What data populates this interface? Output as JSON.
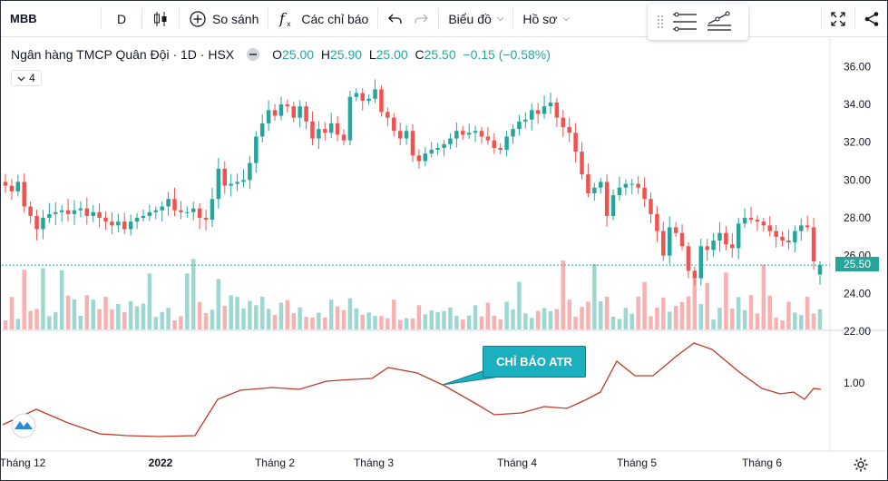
{
  "toolbar": {
    "symbol": "MBB",
    "interval": "D",
    "compare_label": "So sánh",
    "indicators_label": "Các chỉ báo",
    "chart_type_label": "Biểu đồ",
    "profile_label": "Hồ sơ"
  },
  "legend": {
    "name": "Ngân hàng TMCP Quân Đội · 1D · HSX",
    "o_key": "O",
    "o_val": "25.00",
    "h_key": "H",
    "h_val": "25.90",
    "l_key": "L",
    "l_val": "25.00",
    "c_key": "C",
    "c_val": "25.50",
    "change": "−0.15 (−0.58%)"
  },
  "collapse_count": "4",
  "atr_callout": "CHỈ BÁO ATR",
  "last_price": "25.50",
  "colors": {
    "up": "#26a69a",
    "down": "#ef5350",
    "atr": "#c0392b",
    "callout": "#1ab0c0"
  },
  "chart_data": {
    "type": "candlestick",
    "y_axis": {
      "ticks": [
        "36.00",
        "34.00",
        "32.00",
        "30.00",
        "28.00",
        "26.00",
        "24.00",
        "22.00"
      ],
      "range": [
        22,
        36.5
      ]
    },
    "x_axis": {
      "ticks": [
        "Tháng 12",
        "2022",
        "Tháng 2",
        "Tháng 3",
        "Tháng 4",
        "Tháng 5",
        "Tháng 6"
      ]
    },
    "close": [
      29.7,
      29.4,
      29.9,
      28.6,
      28.1,
      27.4,
      28.0,
      28.2,
      28.3,
      28.4,
      28.2,
      28.4,
      28.5,
      28.1,
      28.3,
      28.0,
      27.8,
      27.6,
      27.8,
      27.4,
      27.8,
      28.0,
      28.1,
      28.3,
      28.4,
      28.6,
      29.0,
      28.4,
      28.3,
      28.3,
      28.5,
      28.0,
      27.9,
      29.0,
      30.6,
      29.7,
      29.8,
      29.9,
      30.0,
      30.9,
      32.3,
      33.0,
      33.7,
      33.4,
      34.0,
      33.9,
      33.3,
      33.9,
      33.1,
      32.2,
      32.7,
      32.5,
      33.0,
      32.4,
      32.1,
      34.4,
      34.6,
      34.2,
      34.3,
      34.8,
      33.6,
      33.3,
      32.6,
      32.2,
      32.6,
      31.3,
      31.0,
      31.4,
      31.6,
      31.7,
      31.9,
      32.2,
      32.6,
      32.4,
      32.5,
      32.6,
      32.3,
      32.1,
      31.7,
      31.6,
      32.3,
      32.7,
      33.1,
      33.2,
      33.7,
      33.5,
      33.9,
      34.1,
      33.3,
      32.8,
      32.5,
      31.5,
      30.3,
      29.3,
      29.6,
      29.9,
      28.1,
      29.2,
      29.6,
      29.8,
      29.8,
      29.6,
      29.0,
      28.2,
      27.3,
      26.0,
      27.5,
      27.2,
      26.5,
      25.2,
      24.8,
      26.5,
      26.3,
      26.8,
      27.2,
      26.6,
      26.4,
      27.7,
      28.0,
      27.9,
      27.8,
      27.6,
      27.3,
      27.0,
      26.8,
      26.7,
      27.3,
      27.6,
      27.5,
      25.7,
      25.5
    ],
    "open": [
      29.9,
      29.7,
      29.4,
      29.9,
      28.6,
      28.1,
      27.4,
      28.0,
      28.2,
      28.3,
      28.4,
      28.2,
      28.4,
      28.5,
      28.1,
      28.3,
      28.0,
      27.8,
      27.6,
      27.8,
      27.4,
      27.8,
      28.0,
      28.1,
      28.3,
      28.4,
      28.6,
      29.0,
      28.4,
      28.3,
      28.3,
      28.5,
      28.0,
      27.9,
      29.0,
      30.6,
      29.7,
      29.8,
      29.9,
      30.0,
      30.9,
      32.3,
      33.0,
      33.7,
      33.4,
      34.0,
      33.9,
      33.3,
      33.9,
      33.1,
      32.2,
      32.7,
      32.5,
      33.0,
      32.4,
      32.1,
      34.4,
      34.6,
      34.2,
      34.3,
      34.8,
      33.6,
      33.3,
      32.6,
      32.2,
      32.6,
      31.3,
      31.0,
      31.4,
      31.6,
      31.7,
      31.9,
      32.2,
      32.6,
      32.4,
      32.5,
      32.6,
      32.3,
      32.1,
      31.7,
      31.6,
      32.3,
      32.7,
      33.1,
      33.2,
      33.7,
      33.5,
      33.9,
      34.1,
      33.3,
      32.8,
      32.5,
      31.5,
      30.3,
      29.3,
      29.6,
      29.9,
      28.1,
      29.2,
      29.6,
      29.8,
      29.8,
      29.6,
      29.0,
      28.2,
      27.3,
      26.0,
      27.5,
      27.2,
      26.5,
      25.2,
      24.8,
      26.5,
      26.3,
      26.8,
      27.2,
      26.6,
      26.4,
      27.7,
      28.0,
      27.9,
      27.8,
      27.6,
      27.3,
      27.0,
      26.8,
      26.7,
      27.3,
      27.6,
      27.5,
      25.0
    ],
    "atr_y_ticks": [
      "1.00"
    ]
  }
}
